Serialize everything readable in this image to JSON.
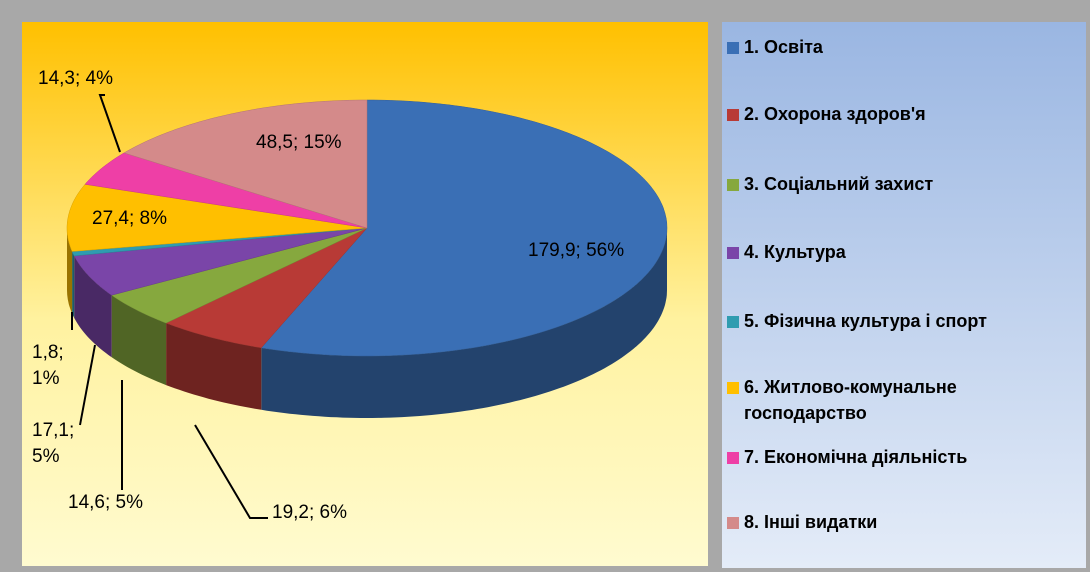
{
  "chart_data": {
    "type": "pie3d",
    "categories": [
      "1. Освіта",
      "2. Охорона здоров'я",
      "3. Соціальний захист",
      "4. Культура",
      "5. Фізична культура і спорт",
      "6. Житлово-комунальне господарство",
      "7. Економічна діяльність",
      "8. Інші видатки"
    ],
    "values": [
      179.9,
      19.2,
      14.6,
      17.1,
      1.8,
      27.4,
      14.3,
      48.5
    ],
    "percentages": [
      56,
      6,
      5,
      5,
      1,
      8,
      4,
      15
    ],
    "value_labels": [
      "179,9; 56%",
      "19,2; 6%",
      "14,6; 5%",
      "17,1; 5%",
      "1,8; 1%",
      "27,4; 8%",
      "14,3; 4%",
      "48,5; 15%"
    ],
    "colors": [
      "#3a6fb5",
      "#b83a36",
      "#86a83e",
      "#7a45a8",
      "#2f9cb0",
      "#ffbf00",
      "#ee3fa6",
      "#d48a8a"
    ],
    "legend": "right"
  }
}
